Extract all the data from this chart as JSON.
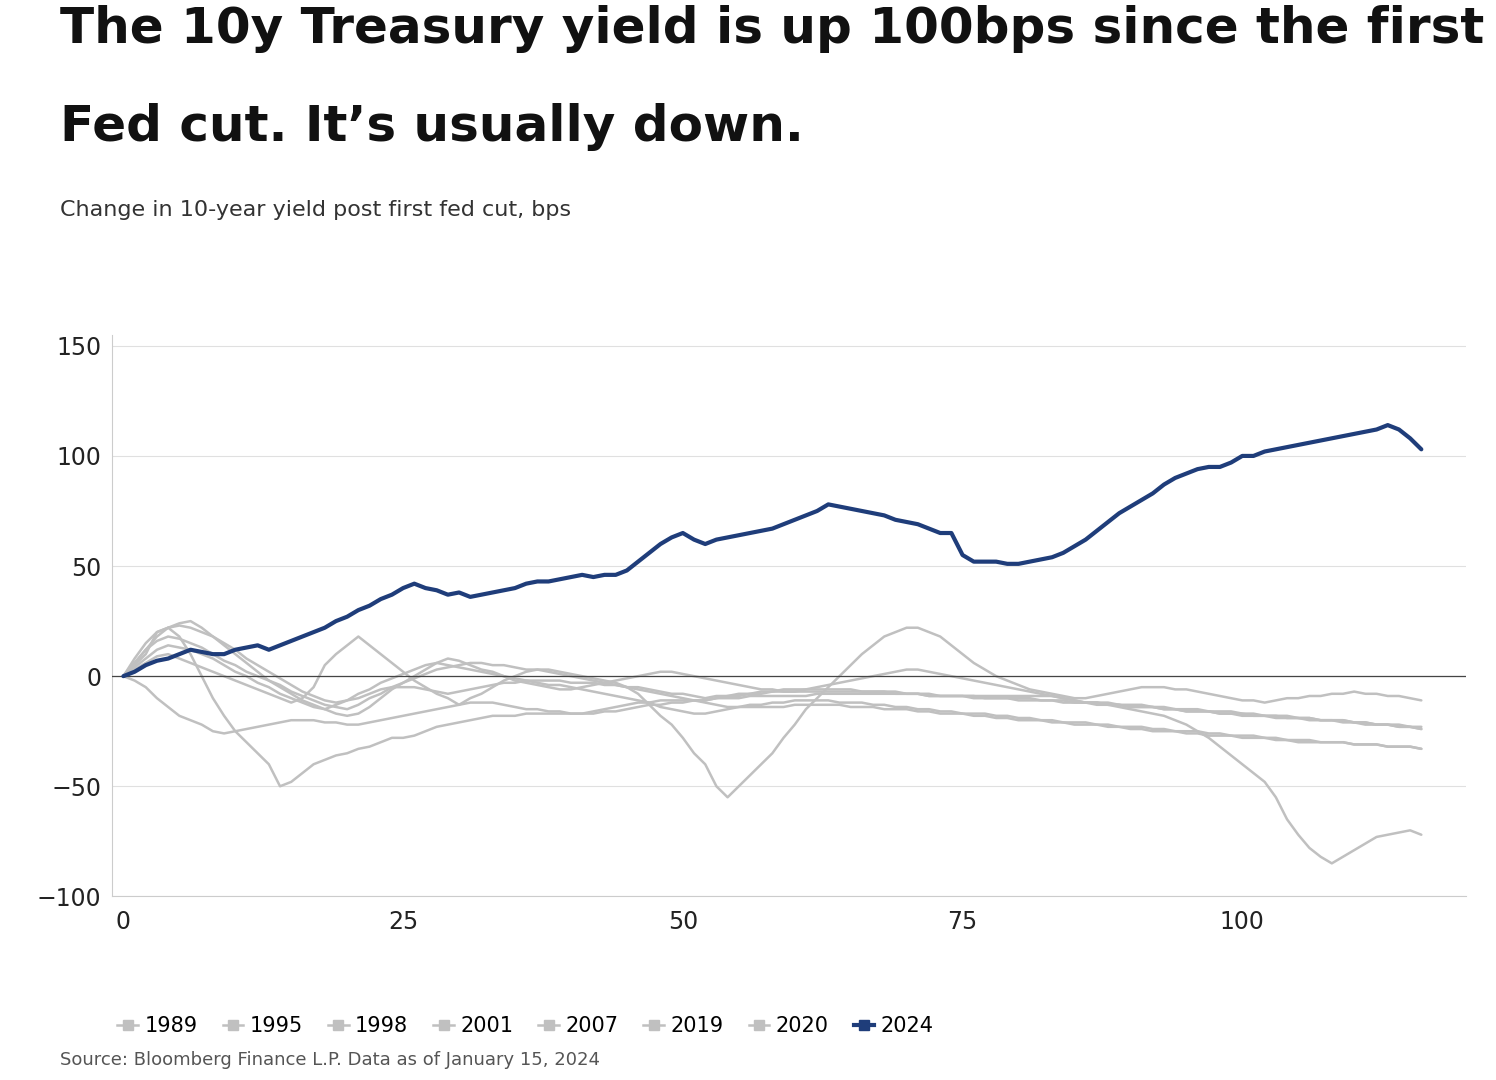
{
  "title_line1": "The 10y Treasury yield is up 100bps since the first",
  "title_line2": "Fed cut. It’s usually down.",
  "subtitle": "Change in 10-year yield post first fed cut, bps",
  "source": "Source: Bloomberg Finance L.P. Data as of January 15, 2024",
  "ylim": [
    -100,
    155
  ],
  "xlim": [
    -1,
    120
  ],
  "yticks": [
    -100,
    -50,
    0,
    50,
    100,
    150
  ],
  "xticks": [
    0,
    25,
    50,
    75,
    100
  ],
  "background_color": "#ffffff",
  "highlight_color": "#1f3d7a",
  "gray_color": "#c0c0c0",
  "series": {
    "2024": [
      0,
      2,
      5,
      7,
      8,
      10,
      12,
      11,
      10,
      10,
      12,
      13,
      14,
      12,
      14,
      16,
      18,
      20,
      22,
      25,
      27,
      30,
      32,
      35,
      37,
      40,
      42,
      40,
      39,
      37,
      38,
      36,
      37,
      38,
      39,
      40,
      42,
      43,
      43,
      44,
      45,
      46,
      45,
      46,
      46,
      48,
      52,
      56,
      60,
      63,
      65,
      62,
      60,
      62,
      63,
      64,
      65,
      66,
      67,
      69,
      71,
      73,
      75,
      78,
      77,
      76,
      75,
      74,
      73,
      71,
      70,
      69,
      67,
      65,
      65,
      55,
      52,
      52,
      52,
      51,
      51,
      52,
      53,
      54,
      56,
      59,
      62,
      66,
      70,
      74,
      77,
      80,
      83,
      87,
      90,
      92,
      94,
      95,
      95,
      97,
      100,
      100,
      102,
      103,
      104,
      105,
      106,
      107,
      108,
      109,
      110,
      111,
      112,
      114,
      112,
      108,
      103
    ],
    "1989": [
      0,
      5,
      10,
      20,
      22,
      18,
      10,
      0,
      -10,
      -18,
      -25,
      -30,
      -35,
      -40,
      -50,
      -48,
      -44,
      -40,
      -38,
      -36,
      -35,
      -33,
      -32,
      -30,
      -28,
      -28,
      -27,
      -25,
      -23,
      -22,
      -21,
      -20,
      -19,
      -18,
      -18,
      -18,
      -17,
      -17,
      -17,
      -17,
      -17,
      -17,
      -17,
      -16,
      -16,
      -15,
      -14,
      -13,
      -13,
      -12,
      -12,
      -11,
      -11,
      -10,
      -10,
      -10,
      -9,
      -9,
      -9,
      -9,
      -9,
      -9,
      -8,
      -8,
      -8,
      -8,
      -8,
      -8,
      -8,
      -8,
      -8,
      -8,
      -9,
      -9,
      -9,
      -9,
      -9,
      -9,
      -9,
      -9,
      -9,
      -9,
      -9,
      -9,
      -10,
      -11,
      -12,
      -12,
      -12,
      -13,
      -13,
      -13,
      -14,
      -14,
      -15,
      -15,
      -15,
      -16,
      -16,
      -16,
      -17,
      -17,
      -18,
      -18,
      -18,
      -19,
      -19,
      -20,
      -20,
      -20,
      -21,
      -21,
      -22,
      -22,
      -22,
      -23,
      -24
    ],
    "1995": [
      0,
      8,
      15,
      20,
      22,
      23,
      22,
      20,
      18,
      15,
      12,
      8,
      5,
      2,
      -1,
      -4,
      -7,
      -9,
      -11,
      -12,
      -11,
      -10,
      -8,
      -6,
      -5,
      -5,
      -5,
      -6,
      -7,
      -8,
      -7,
      -6,
      -5,
      -4,
      -3,
      -3,
      -2,
      -2,
      -2,
      -2,
      -3,
      -3,
      -3,
      -4,
      -4,
      -5,
      -5,
      -6,
      -7,
      -8,
      -8,
      -9,
      -10,
      -9,
      -9,
      -8,
      -8,
      -7,
      -7,
      -6,
      -6,
      -6,
      -6,
      -6,
      -6,
      -6,
      -7,
      -7,
      -7,
      -8,
      -8,
      -8,
      -9,
      -9,
      -9,
      -9,
      -9,
      -10,
      -10,
      -10,
      -10,
      -10,
      -11,
      -11,
      -11,
      -12,
      -12,
      -12,
      -13,
      -13,
      -14,
      -14,
      -14,
      -15,
      -15,
      -16,
      -16,
      -16,
      -17,
      -17,
      -18,
      -18,
      -18,
      -19,
      -19,
      -19,
      -20,
      -20,
      -20,
      -21,
      -21,
      -22,
      -22,
      -22,
      -23,
      -23,
      -24
    ],
    "1998": [
      0,
      6,
      12,
      16,
      18,
      17,
      15,
      13,
      10,
      7,
      5,
      2,
      0,
      -2,
      -4,
      -7,
      -9,
      -11,
      -13,
      -14,
      -15,
      -13,
      -10,
      -8,
      -5,
      -3,
      -1,
      1,
      3,
      4,
      5,
      6,
      6,
      5,
      5,
      4,
      3,
      3,
      2,
      1,
      0,
      -1,
      -2,
      -3,
      -4,
      -5,
      -6,
      -7,
      -8,
      -9,
      -10,
      -11,
      -11,
      -10,
      -9,
      -9,
      -8,
      -8,
      -7,
      -7,
      -7,
      -7,
      -7,
      -7,
      -7,
      -7,
      -7,
      -7,
      -7,
      -7,
      -8,
      -8,
      -8,
      -9,
      -9,
      -9,
      -10,
      -10,
      -10,
      -10,
      -11,
      -11,
      -11,
      -11,
      -12,
      -12,
      -12,
      -13,
      -13,
      -13,
      -14,
      -14,
      -14,
      -15,
      -15,
      -16,
      -16,
      -16,
      -17,
      -17,
      -17,
      -18,
      -18,
      -18,
      -19,
      -19,
      -19,
      -20,
      -20,
      -20,
      -21,
      -21,
      -22,
      -22,
      -23,
      -23,
      -23
    ],
    "2001": [
      0,
      -2,
      -5,
      -10,
      -14,
      -18,
      -20,
      -22,
      -25,
      -26,
      -25,
      -24,
      -23,
      -22,
      -21,
      -20,
      -20,
      -20,
      -21,
      -21,
      -22,
      -22,
      -21,
      -20,
      -19,
      -18,
      -17,
      -16,
      -15,
      -14,
      -13,
      -12,
      -12,
      -12,
      -13,
      -14,
      -15,
      -15,
      -16,
      -16,
      -17,
      -17,
      -16,
      -15,
      -14,
      -13,
      -12,
      -12,
      -11,
      -11,
      -11,
      -11,
      -12,
      -13,
      -14,
      -14,
      -14,
      -14,
      -14,
      -14,
      -13,
      -13,
      -13,
      -13,
      -13,
      -14,
      -14,
      -14,
      -15,
      -15,
      -15,
      -16,
      -16,
      -17,
      -17,
      -17,
      -18,
      -18,
      -19,
      -19,
      -20,
      -20,
      -20,
      -21,
      -21,
      -22,
      -22,
      -22,
      -23,
      -23,
      -24,
      -24,
      -25,
      -25,
      -25,
      -26,
      -26,
      -27,
      -27,
      -27,
      -28,
      -28,
      -28,
      -29,
      -29,
      -30,
      -30,
      -30,
      -30,
      -30,
      -31,
      -31,
      -31,
      -32,
      -32,
      -32,
      -33
    ],
    "2007": [
      0,
      4,
      8,
      12,
      14,
      13,
      12,
      10,
      8,
      5,
      2,
      0,
      -3,
      -5,
      -8,
      -10,
      -12,
      -14,
      -15,
      -13,
      -11,
      -8,
      -6,
      -3,
      -1,
      1,
      3,
      5,
      6,
      5,
      4,
      3,
      2,
      1,
      0,
      -1,
      -2,
      -3,
      -4,
      -4,
      -5,
      -6,
      -7,
      -8,
      -9,
      -10,
      -11,
      -12,
      -14,
      -15,
      -16,
      -17,
      -17,
      -16,
      -15,
      -14,
      -13,
      -13,
      -12,
      -12,
      -11,
      -11,
      -11,
      -11,
      -12,
      -12,
      -12,
      -13,
      -13,
      -14,
      -14,
      -15,
      -15,
      -16,
      -16,
      -17,
      -17,
      -17,
      -18,
      -18,
      -19,
      -19,
      -20,
      -20,
      -21,
      -21,
      -21,
      -22,
      -22,
      -23,
      -23,
      -23,
      -24,
      -24,
      -25,
      -25,
      -25,
      -26,
      -26,
      -27,
      -27,
      -27,
      -28,
      -28,
      -29,
      -29,
      -29,
      -30,
      -30,
      -30,
      -31,
      -31,
      -31,
      -32,
      -32,
      -32,
      -33
    ],
    "2019": [
      0,
      3,
      6,
      9,
      10,
      8,
      6,
      4,
      2,
      0,
      -2,
      -4,
      -6,
      -8,
      -10,
      -12,
      -10,
      -5,
      5,
      10,
      14,
      18,
      14,
      10,
      6,
      2,
      -2,
      -5,
      -8,
      -10,
      -13,
      -10,
      -8,
      -5,
      -2,
      0,
      2,
      3,
      3,
      2,
      1,
      0,
      -1,
      -2,
      -3,
      -5,
      -8,
      -13,
      -18,
      -22,
      -28,
      -35,
      -40,
      -50,
      -55,
      -50,
      -45,
      -40,
      -35,
      -28,
      -22,
      -15,
      -10,
      -5,
      0,
      5,
      10,
      14,
      18,
      20,
      22,
      22,
      20,
      18,
      14,
      10,
      6,
      3,
      0,
      -2,
      -4,
      -6,
      -7,
      -8,
      -9,
      -10,
      -10,
      -9,
      -8,
      -7,
      -6,
      -5,
      -5,
      -5,
      -6,
      -6,
      -7,
      -8,
      -9,
      -10,
      -11,
      -11,
      -12,
      -11,
      -10,
      -10,
      -9,
      -9,
      -8,
      -8,
      -7,
      -8,
      -8,
      -9,
      -9,
      -10,
      -11
    ],
    "2020": [
      0,
      6,
      12,
      18,
      22,
      24,
      25,
      22,
      18,
      14,
      10,
      6,
      2,
      -2,
      -5,
      -8,
      -11,
      -13,
      -15,
      -17,
      -18,
      -17,
      -14,
      -10,
      -6,
      -3,
      0,
      3,
      6,
      8,
      7,
      5,
      3,
      2,
      0,
      -2,
      -3,
      -4,
      -5,
      -6,
      -6,
      -5,
      -4,
      -3,
      -2,
      -1,
      0,
      1,
      2,
      2,
      1,
      0,
      -1,
      -2,
      -3,
      -4,
      -5,
      -6,
      -6,
      -7,
      -7,
      -6,
      -5,
      -4,
      -3,
      -2,
      -1,
      0,
      1,
      2,
      3,
      3,
      2,
      1,
      0,
      -1,
      -2,
      -3,
      -4,
      -5,
      -6,
      -7,
      -8,
      -9,
      -10,
      -11,
      -12,
      -12,
      -13,
      -14,
      -15,
      -16,
      -17,
      -18,
      -20,
      -22,
      -25,
      -28,
      -32,
      -36,
      -40,
      -44,
      -48,
      -55,
      -65,
      -72,
      -78,
      -82,
      -85,
      -82,
      -79,
      -76,
      -73,
      -72,
      -71,
      -70,
      -72
    ]
  },
  "legend_entries": [
    {
      "label": "1989",
      "color": "#c0c0c0"
    },
    {
      "label": "1995",
      "color": "#c0c0c0"
    },
    {
      "label": "1998",
      "color": "#c0c0c0"
    },
    {
      "label": "2001",
      "color": "#c0c0c0"
    },
    {
      "label": "2007",
      "color": "#c0c0c0"
    },
    {
      "label": "2019",
      "color": "#c0c0c0"
    },
    {
      "label": "2020",
      "color": "#c0c0c0"
    },
    {
      "label": "2024",
      "color": "#1f3d7a"
    }
  ]
}
